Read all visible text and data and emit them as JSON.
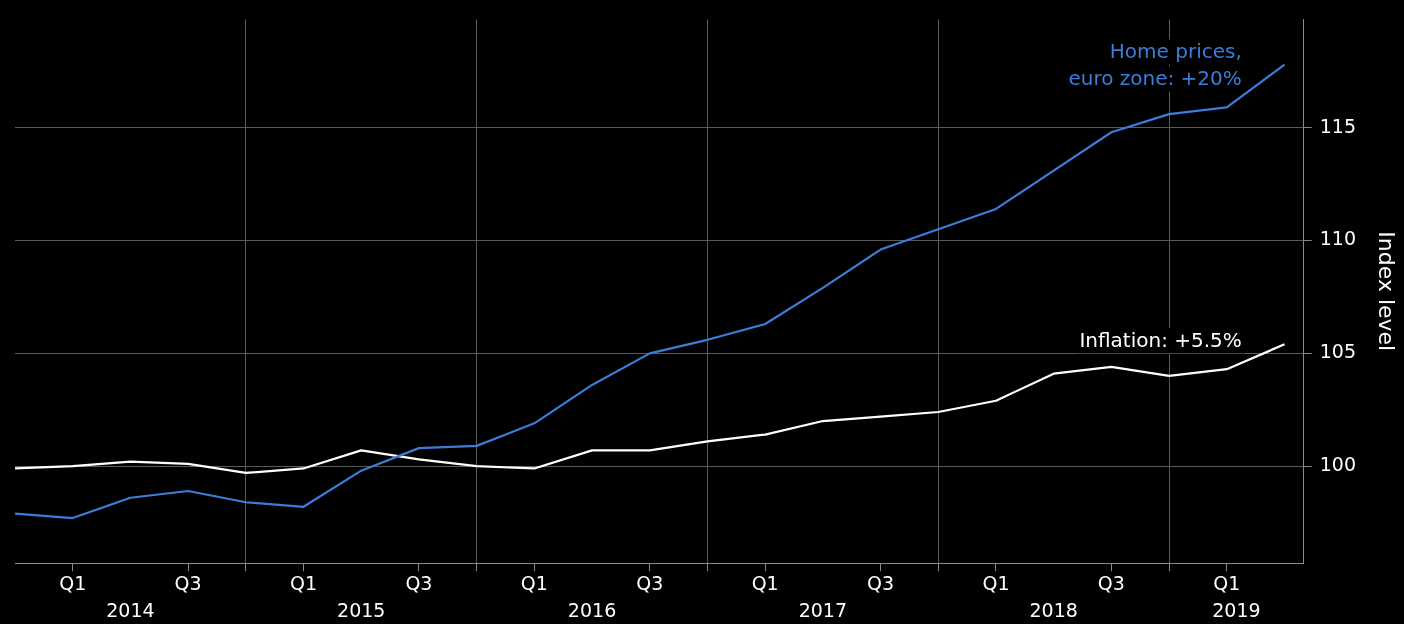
{
  "chart_data": {
    "type": "line",
    "ylabel": "Index level",
    "legend": false,
    "grid": true,
    "x": [
      "2014-01",
      "2014-04",
      "2014-07",
      "2014-10",
      "2015-01",
      "2015-04",
      "2015-07",
      "2015-10",
      "2016-01",
      "2016-04",
      "2016-07",
      "2016-10",
      "2017-01",
      "2017-04",
      "2017-07",
      "2017-10",
      "2018-01",
      "2018-04",
      "2018-07",
      "2018-10",
      "2019-01",
      "2019-04",
      "2019-07"
    ],
    "series": [
      {
        "name": "Home prices,\neuro zone: +20%",
        "color": "#3b7dd8",
        "values": [
          97.9,
          97.7,
          98.6,
          98.9,
          98.4,
          98.2,
          99.8,
          100.8,
          100.9,
          101.9,
          103.6,
          105.0,
          105.6,
          106.3,
          107.9,
          109.6,
          110.5,
          111.4,
          113.1,
          114.8,
          115.6,
          115.9,
          117.8
        ]
      },
      {
        "name": "Inflation: +5.5%",
        "color": "#ffffff",
        "values": [
          99.9,
          100.0,
          100.2,
          100.1,
          99.7,
          99.9,
          100.7,
          100.3,
          100.0,
          99.9,
          100.7,
          100.7,
          101.1,
          101.4,
          102.0,
          102.2,
          102.4,
          102.9,
          104.1,
          104.4,
          104.0,
          104.3,
          105.4
        ]
      }
    ],
    "xlim": [
      "2014-01",
      "2019-08"
    ],
    "xticks": [
      {
        "value": "2014-04",
        "label": "Q1"
      },
      {
        "value": "2014-10",
        "label": "Q3"
      },
      {
        "value": "2015-01",
        "label": null
      },
      {
        "value": "2015-04",
        "label": "Q1"
      },
      {
        "value": "2015-10",
        "label": "Q3"
      },
      {
        "value": "2016-01",
        "label": null
      },
      {
        "value": "2016-04",
        "label": "Q1"
      },
      {
        "value": "2016-10",
        "label": "Q3"
      },
      {
        "value": "2017-01",
        "label": null
      },
      {
        "value": "2017-04",
        "label": "Q1"
      },
      {
        "value": "2017-10",
        "label": "Q3"
      },
      {
        "value": "2018-01",
        "label": null
      },
      {
        "value": "2018-04",
        "label": "Q1"
      },
      {
        "value": "2018-10",
        "label": "Q3"
      },
      {
        "value": "2019-01",
        "label": null
      },
      {
        "value": "2019-04",
        "label": "Q1"
      }
    ],
    "annotations": [
      "2014",
      "2015",
      "2016",
      "2017",
      "2018",
      "2019"
    ],
    "ylim": [
      95.7,
      119.8
    ],
    "yticks": [
      100,
      105,
      110,
      115
    ]
  }
}
